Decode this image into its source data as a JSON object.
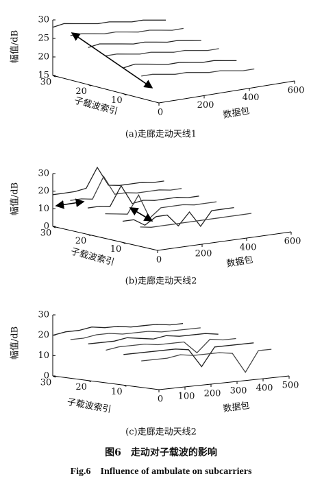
{
  "chart_data": [
    {
      "type": "line3d",
      "caption": "(a)走廊走动天线1",
      "xlabel": "数据包",
      "ylabel": "子载波索引",
      "zlabel": "幅值/dB",
      "xlim": [
        0,
        600
      ],
      "xticks": [
        0,
        200,
        400,
        600
      ],
      "ylim": [
        0,
        30
      ],
      "yticks": [
        10,
        20,
        30
      ],
      "zlim": [
        15,
        30
      ],
      "zticks": [
        15,
        20,
        25,
        30
      ],
      "x": [
        0,
        50,
        100,
        150,
        200,
        250,
        300,
        350,
        400,
        450,
        500
      ],
      "series": [
        {
          "depth": 30,
          "color": "#222222",
          "values": [
            28,
            28.5,
            28,
            27.5,
            27,
            27,
            26.5,
            26,
            26,
            25.5,
            25
          ]
        },
        {
          "depth": 25,
          "color": "#444444",
          "values": [
            27,
            27,
            26.5,
            26,
            26,
            25.5,
            25,
            25,
            24.5,
            24,
            24
          ]
        },
        {
          "depth": 20,
          "color": "#222222",
          "values": [
            25,
            25.5,
            25,
            24.5,
            24,
            24,
            23.5,
            23,
            23,
            22.5,
            22
          ]
        },
        {
          "depth": 15,
          "color": "#444444",
          "values": [
            24,
            24,
            23.5,
            23,
            23,
            22.5,
            22,
            22,
            21.5,
            21,
            21
          ]
        },
        {
          "depth": 10,
          "color": "#222222",
          "values": [
            22,
            22.5,
            22,
            21.5,
            21,
            21,
            20.5,
            20,
            20,
            19.5,
            19
          ]
        },
        {
          "depth": 5,
          "color": "#444444",
          "values": [
            21,
            21,
            20.5,
            20,
            20,
            19.5,
            19,
            19,
            18.5,
            18,
            18
          ]
        }
      ]
    },
    {
      "type": "line3d",
      "caption": "(b)走廊走动天线2",
      "xlabel": "数据包",
      "ylabel": "子载波索引",
      "zlabel": "幅值/dB",
      "xlim": [
        0,
        600
      ],
      "xticks": [
        0,
        200,
        400,
        600
      ],
      "ylim": [
        0,
        30
      ],
      "yticks": [
        10,
        20,
        30
      ],
      "zlim": [
        0,
        30
      ],
      "zticks": [
        0,
        10,
        20,
        30
      ],
      "x": [
        0,
        50,
        100,
        150,
        200,
        250,
        300,
        350,
        400,
        450,
        500
      ],
      "series": [
        {
          "depth": 30,
          "color": "#222222",
          "values": [
            18,
            18,
            18,
            19,
            30,
            19,
            18,
            18,
            18,
            17,
            17
          ]
        },
        {
          "depth": 25,
          "color": "#444444",
          "values": [
            17,
            17,
            16,
            28,
            17,
            17,
            16,
            16,
            16,
            15,
            15
          ]
        },
        {
          "depth": 20,
          "color": "#222222",
          "values": [
            15,
            15,
            14,
            25,
            14,
            15,
            14,
            14,
            14,
            13,
            13
          ]
        },
        {
          "depth": 15,
          "color": "#444444",
          "values": [
            14,
            13,
            12,
            22,
            8,
            13,
            13,
            13,
            12,
            12,
            12
          ]
        },
        {
          "depth": 10,
          "color": "#222222",
          "values": [
            12,
            12,
            8,
            12,
            12,
            5,
            12,
            3,
            11,
            11,
            11
          ]
        },
        {
          "depth": 5,
          "color": "#444444",
          "values": [
            11,
            10,
            10,
            10,
            10,
            10,
            10,
            10,
            10,
            10,
            10
          ]
        }
      ]
    },
    {
      "type": "line3d",
      "caption": "(c)走廊走动天线2",
      "xlabel": "数据包",
      "ylabel": "子载波索引",
      "zlabel": "幅值/dB",
      "xlim": [
        0,
        500
      ],
      "xticks": [
        0,
        100,
        200,
        300,
        400,
        500
      ],
      "ylim": [
        0,
        30
      ],
      "yticks": [
        10,
        20,
        30
      ],
      "zlim": [
        0,
        30
      ],
      "zticks": [
        0,
        10,
        20,
        30
      ],
      "x": [
        0,
        50,
        100,
        150,
        200,
        250,
        300,
        350,
        400,
        450,
        500
      ],
      "series": [
        {
          "depth": 30,
          "color": "#222222",
          "values": [
            20,
            21,
            21,
            22,
            21,
            21,
            20,
            20,
            20,
            19,
            19
          ]
        },
        {
          "depth": 25,
          "color": "#444444",
          "values": [
            19,
            19,
            20,
            20,
            19,
            19,
            19,
            18,
            18,
            18,
            18
          ]
        },
        {
          "depth": 20,
          "color": "#222222",
          "values": [
            18,
            18,
            18,
            19,
            18,
            17,
            18,
            17,
            17,
            17,
            16
          ]
        },
        {
          "depth": 15,
          "color": "#444444",
          "values": [
            16,
            17,
            17,
            17,
            16,
            16,
            16,
            10,
            16,
            15,
            15
          ]
        },
        {
          "depth": 10,
          "color": "#222222",
          "values": [
            15,
            15,
            15,
            15,
            15,
            14,
            5,
            14,
            14,
            14,
            14
          ]
        },
        {
          "depth": 5,
          "color": "#444444",
          "values": [
            13,
            13,
            13,
            14,
            13,
            13,
            13,
            12,
            2,
            12,
            12
          ]
        }
      ]
    }
  ],
  "figure": {
    "caption_cn": "图6　走动对子载波的影响",
    "caption_en": "Fig.6　Influence of ambulate on subcarriers"
  }
}
